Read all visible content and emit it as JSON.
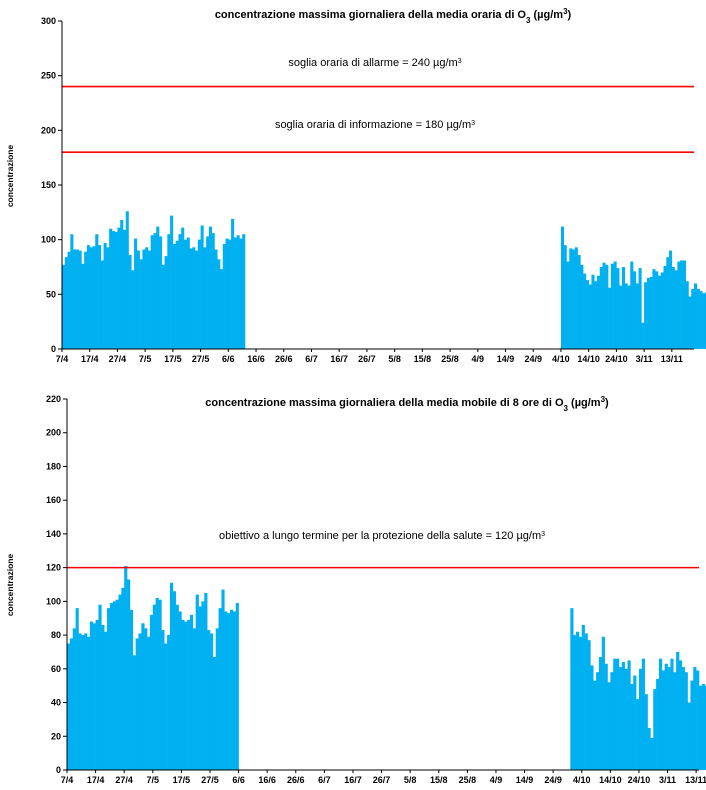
{
  "charts": [
    {
      "title": "concentrazione massima giornaliera della media oraria di O",
      "title_sub": "3",
      "title_unit": " (µg/m",
      "title_sup": "3",
      "title_end": ")",
      "ylabel": "concentrazione"
    },
    {
      "title": "concentrazione massima giornaliera della media mobile di 8 ore di O",
      "title_sub": "3",
      "title_unit": " (µg/m",
      "title_sup": "3",
      "title_end": ")",
      "ylabel": "concentrazione"
    }
  ],
  "chart_data": [
    {
      "type": "bar",
      "bar_color": "#00b0f0",
      "threshold_color": "#ff0000",
      "ylim": [
        0,
        300
      ],
      "yticks": [
        0,
        50,
        100,
        150,
        200,
        250,
        300
      ],
      "grid": false,
      "x_tick_labels": [
        "7/4",
        "17/4",
        "27/4",
        "7/5",
        "17/5",
        "27/5",
        "6/6",
        "16/6",
        "26/6",
        "6/7",
        "16/7",
        "26/7",
        "5/8",
        "15/8",
        "25/8",
        "4/9",
        "14/9",
        "24/9",
        "4/10",
        "14/10",
        "24/10",
        "3/11",
        "13/11"
      ],
      "day_count": 228,
      "thresholds": [
        {
          "value": 240,
          "label": "soglia oraria di allarme = 240 µg/m",
          "sup": "3"
        },
        {
          "value": 180,
          "label": "soglia oraria di informazione = 180 µg/m",
          "sup": "3"
        }
      ],
      "segments": [
        {
          "start_day": 0,
          "values": [
            77,
            84,
            89,
            105,
            91,
            91,
            90,
            78,
            89,
            95,
            93,
            94,
            105,
            95,
            81,
            97,
            93,
            110,
            108,
            107,
            111,
            118,
            109,
            126,
            86,
            72,
            101,
            90,
            82,
            91,
            93,
            90,
            104,
            106,
            112,
            103,
            77,
            85,
            105,
            122,
            96,
            99,
            105,
            111,
            100,
            102,
            92,
            93,
            90,
            100,
            113,
            93,
            103,
            112,
            106,
            91,
            82,
            73,
            96,
            101,
            100,
            119,
            102,
            104,
            101,
            105
          ]
        },
        {
          "start_day": 180,
          "values": [
            112,
            95,
            80,
            92,
            91,
            93,
            86,
            77,
            69,
            63,
            59,
            68,
            62,
            67,
            75,
            79,
            77,
            56,
            78,
            80,
            74,
            58,
            75,
            60,
            58,
            80,
            71,
            60,
            74,
            24,
            61,
            65,
            66,
            73,
            71,
            67,
            70,
            76,
            84,
            90,
            75,
            72,
            80,
            81,
            81,
            62,
            48,
            55,
            60,
            55,
            53,
            51,
            52,
            50,
            44,
            24,
            20,
            50,
            50
          ]
        }
      ]
    },
    {
      "type": "bar",
      "bar_color": "#00b0f0",
      "threshold_color": "#ff0000",
      "ylim": [
        0,
        220
      ],
      "yticks": [
        0,
        20,
        40,
        60,
        80,
        100,
        120,
        140,
        160,
        180,
        200,
        220
      ],
      "grid": false,
      "x_tick_labels": [
        "7/4",
        "17/4",
        "27/4",
        "7/5",
        "17/5",
        "27/5",
        "6/6",
        "16/6",
        "26/6",
        "6/7",
        "16/7",
        "26/7",
        "5/8",
        "15/8",
        "25/8",
        "4/9",
        "14/9",
        "24/9",
        "4/10",
        "14/10",
        "24/10",
        "3/11",
        "13/11"
      ],
      "day_count": 221,
      "thresholds": [
        {
          "value": 120,
          "label": "obiettivo a lungo termine per la protezione della salute = 120 µg/m",
          "sup": "3"
        }
      ],
      "segments": [
        {
          "start_day": 0,
          "values": [
            75,
            78,
            84,
            96,
            81,
            80,
            81,
            79,
            88,
            87,
            89,
            98,
            86,
            82,
            96,
            99,
            100,
            101,
            104,
            108,
            121,
            113,
            95,
            68,
            78,
            81,
            87,
            84,
            79,
            92,
            98,
            102,
            101,
            83,
            75,
            80,
            111,
            106,
            98,
            94,
            89,
            88,
            89,
            92,
            84,
            104,
            97,
            100,
            105,
            83,
            81,
            67,
            84,
            96,
            107,
            94,
            93,
            95,
            94,
            99
          ]
        },
        {
          "start_day": 176,
          "values": [
            96,
            80,
            82,
            79,
            86,
            81,
            77,
            62,
            53,
            58,
            67,
            79,
            63,
            52,
            58,
            66,
            66,
            61,
            64,
            60,
            65,
            51,
            56,
            42,
            60,
            66,
            45,
            25,
            19,
            48,
            54,
            66,
            59,
            63,
            61,
            66,
            58,
            70,
            65,
            61,
            58,
            40,
            53,
            61,
            59,
            50,
            51,
            50,
            46,
            29,
            35,
            23,
            14,
            45,
            43
          ]
        }
      ]
    }
  ]
}
